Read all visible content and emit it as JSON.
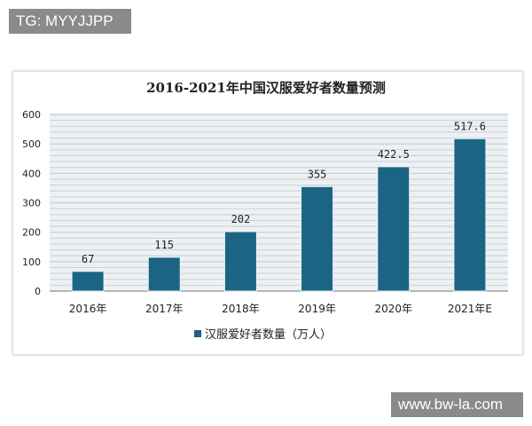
{
  "watermarks": {
    "top_left": "TG: MYYJJPP",
    "bottom_right": "www.bw-la.com"
  },
  "chart_data": {
    "type": "bar",
    "title": "2016-2021年中国汉服爱好者数量预测",
    "categories": [
      "2016年",
      "2017年",
      "2018年",
      "2019年",
      "2020年",
      "2021年E"
    ],
    "series": [
      {
        "name": "汉服爱好者数量（万人）",
        "values": [
          67,
          115,
          202,
          355,
          422.5,
          517.6
        ],
        "labels": [
          "67",
          "115",
          "202",
          "355",
          "422.5",
          "517.6"
        ]
      }
    ],
    "ylim": [
      0,
      600
    ],
    "yticks": [
      "0",
      "100",
      "200",
      "300",
      "400",
      "500",
      "600"
    ],
    "grid": true,
    "legend": "bottom",
    "colors": {
      "bar": "#1c6483",
      "grid": "#c9d2d9"
    }
  }
}
